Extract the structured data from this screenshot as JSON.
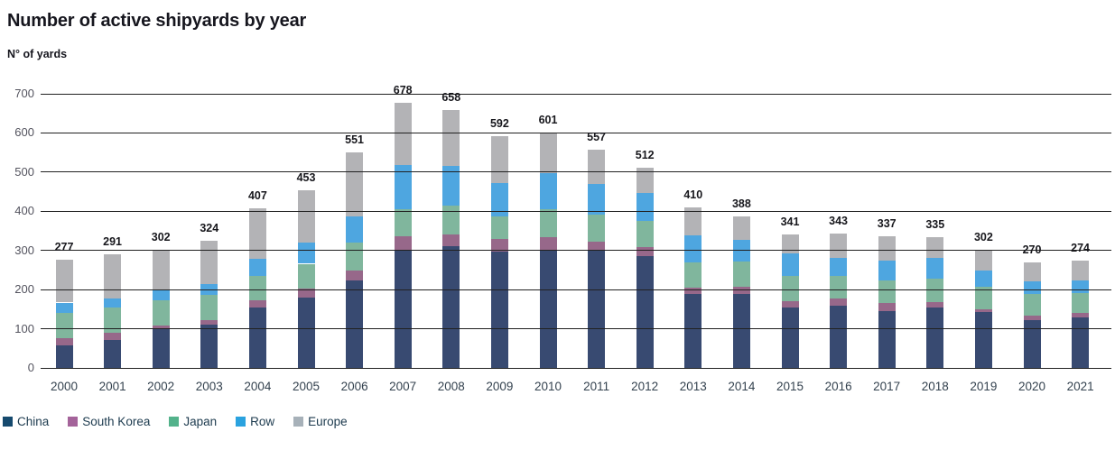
{
  "header": {
    "title": "Number of active shipyards by year",
    "units_label": "N° of yards"
  },
  "chart_data": {
    "type": "bar",
    "stacked": true,
    "title": "Number of active shipyards by year",
    "ylabel": "N° of yards",
    "xlabel": "",
    "ylim": [
      0,
      700
    ],
    "ytick_step": 100,
    "yticks": [
      0,
      100,
      200,
      300,
      400,
      500,
      600,
      700
    ],
    "grid": true,
    "gridline_color": "#212121",
    "legend_position": "bottom-left",
    "categories": [
      "2000",
      "2001",
      "2002",
      "2003",
      "2004",
      "2005",
      "2006",
      "2007",
      "2008",
      "2009",
      "2010",
      "2011",
      "2012",
      "2013",
      "2014",
      "2015",
      "2016",
      "2017",
      "2018",
      "2019",
      "2020",
      "2021"
    ],
    "totals": [
      277,
      291,
      302,
      324,
      407,
      453,
      551,
      678,
      658,
      592,
      601,
      557,
      512,
      410,
      388,
      341,
      343,
      337,
      335,
      302,
      270,
      274
    ],
    "series": [
      {
        "name": "China",
        "color": "#384a71",
        "legend_color": "#164a6e",
        "values": [
          58,
          72,
          98,
          110,
          154,
          179,
          223,
          301,
          310,
          297,
          301,
          300,
          286,
          188,
          190,
          155,
          159,
          146,
          155,
          142,
          123,
          129
        ]
      },
      {
        "name": "South Korea",
        "color": "#97688a",
        "legend_color": "#a4639a",
        "values": [
          17,
          18,
          11,
          13,
          19,
          23,
          25,
          35,
          30,
          32,
          33,
          23,
          23,
          17,
          18,
          15,
          19,
          19,
          14,
          8,
          11,
          12
        ]
      },
      {
        "name": "Japan",
        "color": "#80b69d",
        "legend_color": "#53b28b",
        "values": [
          66,
          65,
          64,
          63,
          63,
          64,
          72,
          69,
          75,
          59,
          71,
          69,
          66,
          65,
          63,
          64,
          58,
          59,
          59,
          58,
          56,
          51
        ]
      },
      {
        "name": "Row",
        "color": "#4ea6e0",
        "legend_color": "#2aa2df",
        "values": [
          26,
          23,
          26,
          29,
          42,
          54,
          68,
          114,
          100,
          85,
          92,
          78,
          72,
          69,
          56,
          59,
          46,
          50,
          52,
          40,
          31,
          31
        ]
      },
      {
        "name": "Europe",
        "color": "#b3b3b6",
        "legend_color": "#a7b1b9",
        "values": [
          110,
          113,
          103,
          109,
          129,
          133,
          163,
          159,
          143,
          119,
          104,
          87,
          65,
          71,
          61,
          48,
          61,
          63,
          55,
          54,
          49,
          51
        ]
      }
    ]
  }
}
